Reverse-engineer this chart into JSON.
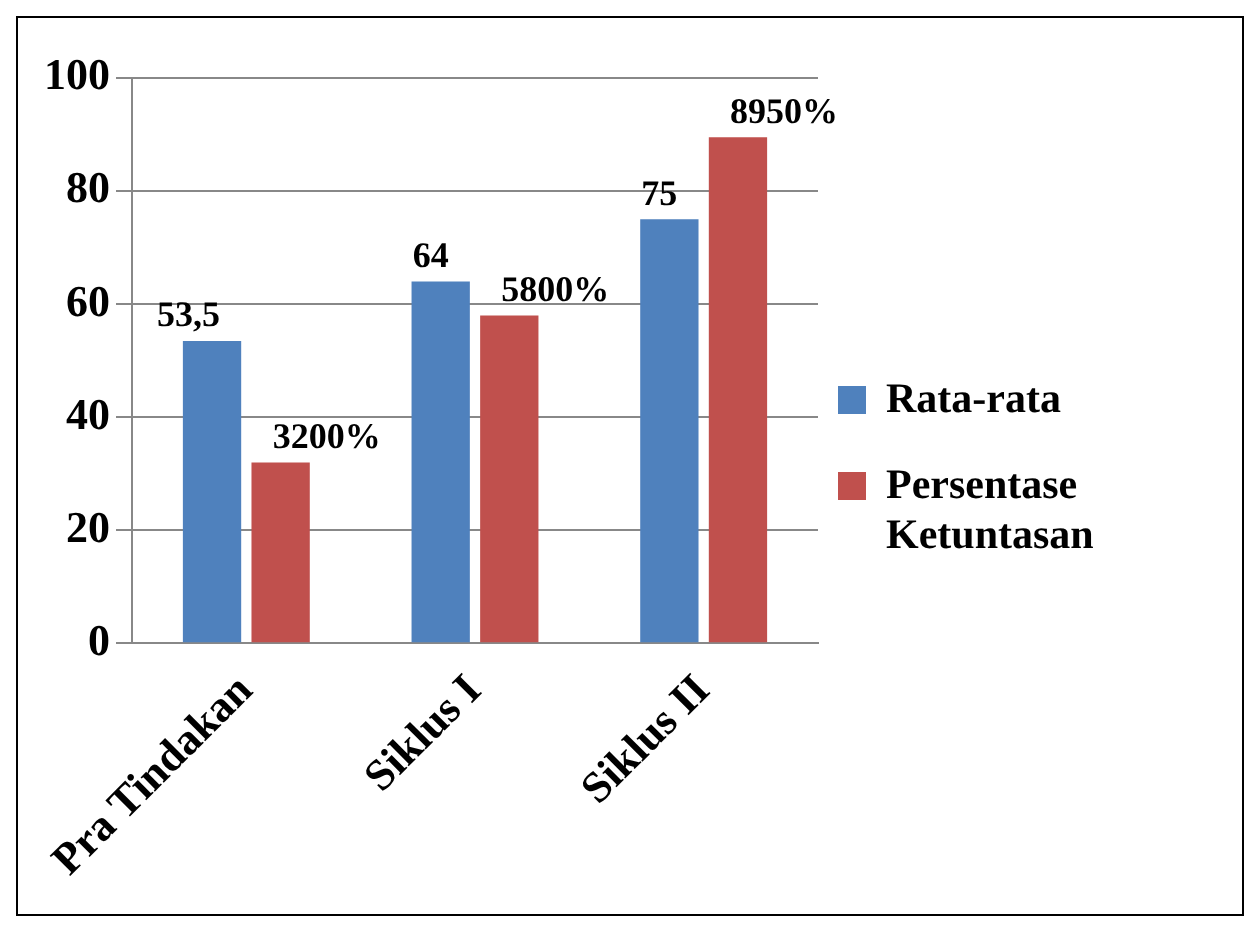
{
  "chart_data": {
    "type": "bar",
    "categories": [
      "Pra Tindakan",
      "Siklus I",
      "Siklus II"
    ],
    "series": [
      {
        "name": "Rata-rata",
        "color": "#4f81bd",
        "values": [
          53.5,
          64,
          75
        ],
        "value_labels": [
          "53,5",
          "64",
          "75"
        ]
      },
      {
        "name": "Persentase Ketuntasan",
        "color": "#c0504d",
        "values": [
          32,
          58,
          89.5
        ],
        "value_labels": [
          "3200%",
          "5800%",
          "8950%"
        ]
      }
    ],
    "ylim": [
      0,
      100
    ],
    "yticks": [
      0,
      20,
      40,
      60,
      80,
      100
    ],
    "grid": "y",
    "legend": "right"
  }
}
